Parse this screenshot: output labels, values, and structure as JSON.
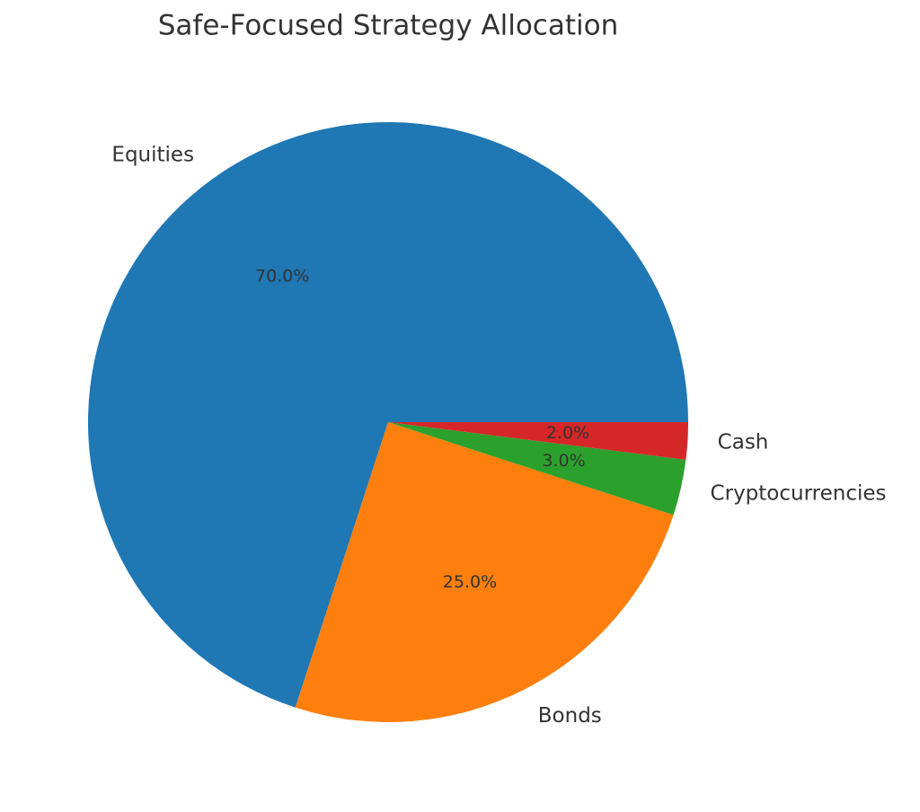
{
  "chart_data": {
    "type": "pie",
    "title": "Safe-Focused Strategy Allocation",
    "categories": [
      "Equities",
      "Bonds",
      "Cryptocurrencies",
      "Cash"
    ],
    "values": [
      70,
      25,
      3,
      2
    ],
    "value_labels": [
      "70.0%",
      "25.0%",
      "3.0%",
      "2.0%"
    ],
    "colors": [
      "#1f77b4",
      "#ff7f0e",
      "#2ca02c",
      "#d62728"
    ]
  }
}
